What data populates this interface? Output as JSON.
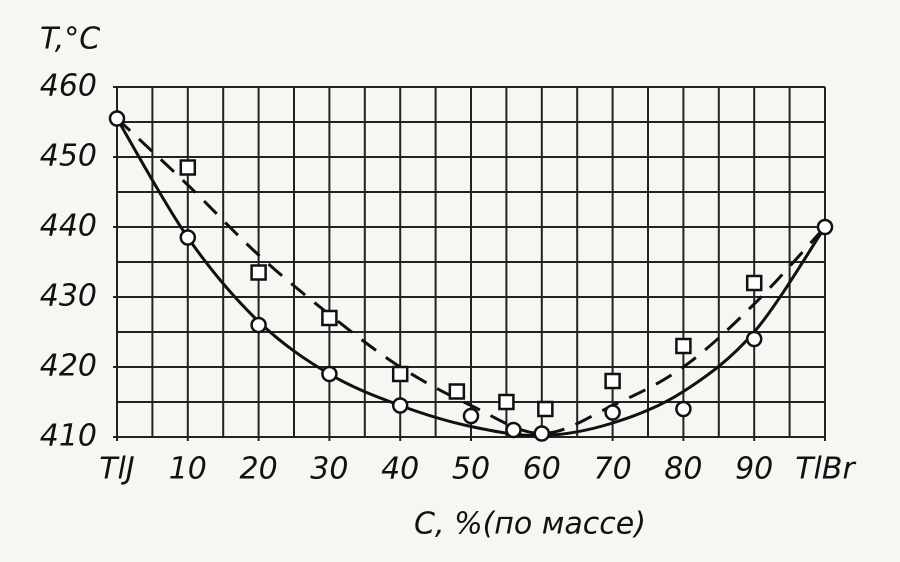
{
  "chart_data": {
    "type": "scatter",
    "y_label": "T,°C",
    "x_label": "C, %(по массе)",
    "xlim": [
      0,
      100
    ],
    "ylim": [
      410,
      460
    ],
    "xticks": [
      {
        "value": 0,
        "label": "TlJ"
      },
      10,
      20,
      30,
      40,
      50,
      60,
      70,
      80,
      90,
      {
        "value": 100,
        "label": "TlBr"
      }
    ],
    "yticks": [
      410,
      420,
      430,
      440,
      450,
      460
    ],
    "grid_step": 5,
    "grid": true,
    "color": "#111111",
    "series": [
      {
        "marker": "circle",
        "line": "solid",
        "x": [
          0,
          10,
          20,
          30,
          40,
          50,
          56,
          60,
          70,
          80,
          90,
          100
        ],
        "values": [
          455.5,
          438.5,
          426,
          419,
          414.5,
          413,
          411,
          410.5,
          413.5,
          414,
          424,
          440
        ],
        "curve_x": [
          0,
          10,
          20,
          30,
          40,
          50,
          60,
          70,
          80,
          90,
          100
        ],
        "curve": [
          455.5,
          438.5,
          426.5,
          419,
          414.5,
          411.5,
          410.2,
          412,
          416.5,
          425,
          440
        ]
      },
      {
        "marker": "square",
        "line": "dashed",
        "x": [
          10,
          20,
          30,
          40,
          48,
          55,
          60.5,
          70,
          80,
          90
        ],
        "values": [
          448.5,
          433.5,
          427,
          419,
          416.5,
          415,
          414,
          418,
          423,
          432
        ],
        "curve_x": [
          0,
          10,
          20,
          30,
          40,
          50,
          60,
          70,
          80,
          90,
          100
        ],
        "curve": [
          455.5,
          446,
          436,
          427.5,
          420,
          414.5,
          410.5,
          414.5,
          420,
          429,
          440
        ]
      }
    ]
  }
}
